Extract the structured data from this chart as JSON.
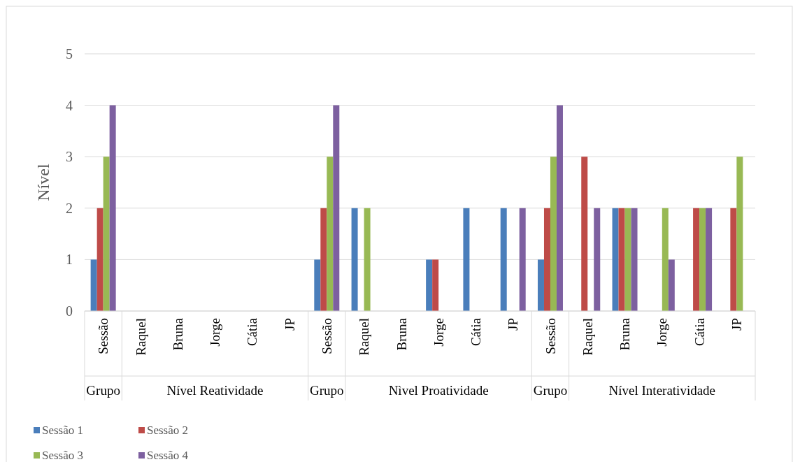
{
  "chart_data": {
    "type": "bar",
    "ylabel": "Nível",
    "categories": [
      "Sessão",
      "Raquel",
      "Bruna",
      "Jorge",
      "Cátia",
      "JP",
      "Sessão",
      "Raquel",
      "Bruna",
      "Jorge",
      "Cátia",
      "JP",
      "Sessão",
      "Raquel",
      "Bruna",
      "Jorge",
      "Cátia",
      "JP"
    ],
    "annotations": [
      "Grupo",
      "Nível Reatividade",
      "Grupo",
      "Nìvel Proatividade",
      "Grupo",
      "Nível Interatividade"
    ],
    "series": [
      {
        "name": "Sessão 1",
        "color": "#4a7ebb",
        "values": [
          1,
          0,
          0,
          0,
          0,
          0,
          1,
          2,
          0,
          1,
          2,
          2,
          1,
          0,
          2,
          0,
          0,
          0
        ]
      },
      {
        "name": "Sessão 2",
        "color": "#be4b48",
        "values": [
          2,
          0,
          0,
          0,
          0,
          0,
          2,
          0,
          0,
          1,
          0,
          0,
          2,
          3,
          2,
          0,
          2,
          2
        ]
      },
      {
        "name": "Sessão 3",
        "color": "#98b954",
        "values": [
          3,
          0,
          0,
          0,
          0,
          0,
          3,
          2,
          0,
          0,
          0,
          0,
          3,
          0,
          2,
          2,
          2,
          3
        ]
      },
      {
        "name": "Sessão 4",
        "color": "#7d60a0",
        "values": [
          4,
          0,
          0,
          0,
          0,
          0,
          4,
          0,
          0,
          0,
          0,
          2,
          4,
          2,
          2,
          1,
          2,
          0
        ]
      }
    ],
    "ylim": [
      0,
      5
    ],
    "yticks": [
      0,
      1,
      2,
      3,
      4,
      5
    ],
    "grid": "y",
    "legend": "bottom left"
  }
}
